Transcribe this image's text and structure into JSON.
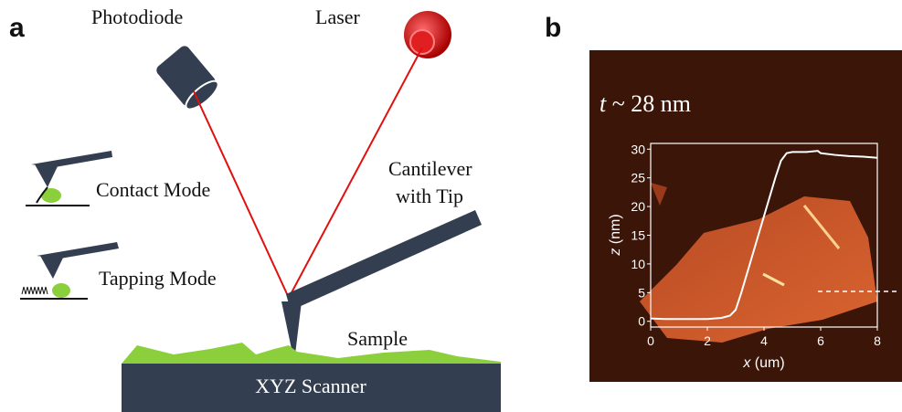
{
  "panel_a": {
    "label": "a",
    "photodiode": "Photodiode",
    "laser": "Laser",
    "cantilever_line1": "Cantilever",
    "cantilever_line2": "with Tip",
    "contact_mode": "Contact Mode",
    "tapping_mode": "Tapping Mode",
    "sample": "Sample",
    "scanner": "XYZ Scanner"
  },
  "panel_b": {
    "label": "b",
    "thickness_var": "t",
    "thickness_text": "~ 28 nm"
  },
  "chart_data": {
    "type": "line",
    "x_label_var": "x",
    "x_label_unit": "(um)",
    "y_label_var": "z",
    "y_label_unit": "(nm)",
    "x": [
      0,
      0.5,
      1,
      1.5,
      2,
      2.5,
      2.8,
      3.0,
      3.2,
      3.5,
      3.8,
      4.1,
      4.4,
      4.6,
      4.8,
      5.0,
      5.5,
      5.9,
      6.0,
      6.5,
      7,
      7.5,
      8
    ],
    "series": [
      {
        "color": "#ffffff",
        "values": [
          0.5,
          0.4,
          0.4,
          0.4,
          0.4,
          0.6,
          1.0,
          2,
          5,
          10,
          15,
          20,
          25,
          28,
          29.3,
          29.5,
          29.5,
          29.7,
          29.3,
          29,
          28.8,
          28.7,
          28.5
        ]
      }
    ],
    "xlim": [
      0,
      8
    ],
    "xticks": [
      0,
      2,
      4,
      6,
      8
    ],
    "ylim": [
      -1,
      31
    ],
    "yticks": [
      0,
      5,
      10,
      15,
      20,
      25,
      30
    ]
  }
}
